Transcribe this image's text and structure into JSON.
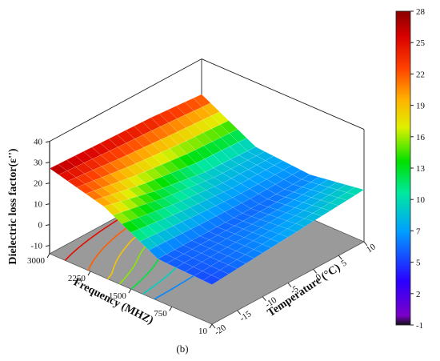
{
  "caption": "(b)",
  "chart_data": {
    "type": "surface3d",
    "zlabel": "Dielectric loss factor(ε'')",
    "xlabel": "Frequency (MHZ)",
    "ylabel": "Temperature (°C)",
    "xlim": [
      10,
      3000
    ],
    "ylim": [
      -20,
      10
    ],
    "zlim": [
      -15,
      40
    ],
    "x_ticks": [
      "3000",
      "2250",
      "1500",
      "750",
      "10"
    ],
    "y_ticks": [
      "-20",
      "-15",
      "-10",
      "-5",
      "0",
      "5",
      "10"
    ],
    "z_ticks": [
      "40",
      "30",
      "20",
      "10",
      "0",
      "-10"
    ],
    "colorbar_ticks": [
      "28",
      "25",
      "22",
      "19",
      "16",
      "13",
      "10",
      "7",
      "5",
      "2",
      "-1"
    ],
    "colorbar_range": [
      -1,
      28
    ],
    "contour_levels": [
      2,
      5,
      7,
      10,
      13,
      16,
      19,
      22,
      25
    ],
    "floor_color": "#9a9a9a",
    "surface_grid": {
      "x": [
        10,
        1000,
        2000,
        3000
      ],
      "y": [
        -20,
        -10,
        0,
        10
      ],
      "z": [
        [
          5,
          6,
          20,
          27
        ],
        [
          7,
          6,
          14,
          26
        ],
        [
          9,
          6,
          10,
          25
        ],
        [
          11,
          7,
          9,
          23
        ]
      ]
    }
  }
}
